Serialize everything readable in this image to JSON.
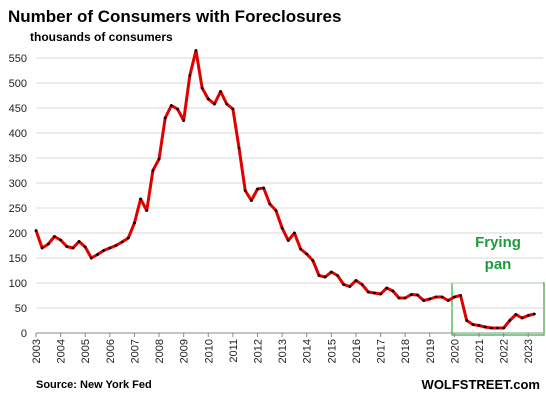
{
  "chart_data": {
    "type": "line",
    "title": "Number  of Consumers  with Foreclosures",
    "subtitle": "thousands of consumers",
    "source": "Source: New York Fed",
    "brand": "WOLFSTREET.com",
    "annotation": [
      "Frying",
      "pan"
    ],
    "x": [
      2003,
      2003.25,
      2003.5,
      2003.75,
      2004,
      2004.25,
      2004.5,
      2004.75,
      2005,
      2005.25,
      2005.5,
      2005.75,
      2006,
      2006.25,
      2006.5,
      2006.75,
      2007,
      2007.25,
      2007.5,
      2007.75,
      2008,
      2008.25,
      2008.5,
      2008.75,
      2009,
      2009.25,
      2009.5,
      2009.75,
      2010,
      2010.25,
      2010.5,
      2010.75,
      2011,
      2011.25,
      2011.5,
      2011.75,
      2012,
      2012.25,
      2012.5,
      2012.75,
      2013,
      2013.25,
      2013.5,
      2013.75,
      2014,
      2014.25,
      2014.5,
      2014.75,
      2015,
      2015.25,
      2015.5,
      2015.75,
      2016,
      2016.25,
      2016.5,
      2016.75,
      2017,
      2017.25,
      2017.5,
      2017.75,
      2018,
      2018.25,
      2018.5,
      2018.75,
      2019,
      2019.25,
      2019.5,
      2019.75,
      2020,
      2020.25,
      2020.5,
      2020.75,
      2021,
      2021.25,
      2021.5,
      2021.75,
      2022,
      2022.25,
      2022.5,
      2022.75,
      2023,
      2023.25
    ],
    "series": [
      {
        "name": "Consumers with foreclosures",
        "color": "#e00000",
        "values": [
          205,
          170,
          178,
          193,
          186,
          173,
          170,
          183,
          172,
          150,
          157,
          165,
          170,
          175,
          182,
          190,
          220,
          268,
          245,
          325,
          348,
          430,
          455,
          448,
          425,
          515,
          565,
          490,
          468,
          458,
          483,
          458,
          448,
          370,
          285,
          265,
          288,
          290,
          258,
          245,
          210,
          185,
          200,
          168,
          158,
          145,
          115,
          112,
          122,
          115,
          97,
          93,
          105,
          97,
          82,
          80,
          78,
          90,
          84,
          70,
          70,
          77,
          76,
          65,
          68,
          72,
          72,
          65,
          72,
          75,
          25,
          17,
          15,
          12,
          10,
          10,
          10,
          25,
          37,
          30,
          35,
          38
        ]
      }
    ],
    "xlim": [
      2003,
      2023.6
    ],
    "xticks": [
      2003,
      2004,
      2005,
      2006,
      2007,
      2008,
      2009,
      2010,
      2011,
      2012,
      2013,
      2014,
      2015,
      2016,
      2017,
      2018,
      2019,
      2020,
      2021,
      2022,
      2023
    ],
    "ylim": [
      0,
      550
    ],
    "yticks": [
      0,
      50,
      100,
      150,
      200,
      250,
      300,
      350,
      400,
      450,
      500,
      550
    ],
    "grid": true
  }
}
